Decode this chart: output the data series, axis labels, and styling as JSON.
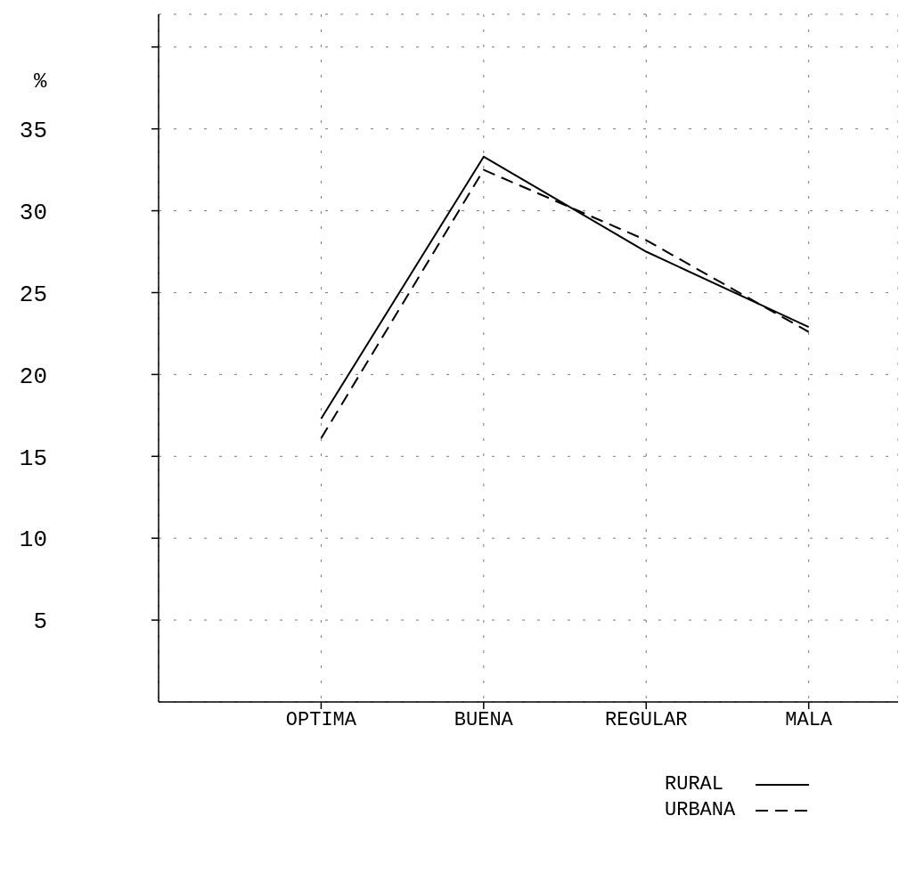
{
  "chart_data": {
    "type": "line",
    "ylabel": "%",
    "categories": [
      "OPTIMA",
      "BUENA",
      "REGULAR",
      "MALA"
    ],
    "series": [
      {
        "name": "RURAL",
        "color": "#000000",
        "values": [
          17.3,
          33.3,
          27.5,
          22.9
        ],
        "line_style": "solid"
      },
      {
        "name": "URBANA",
        "color": "#000000",
        "values": [
          16.1,
          32.5,
          28.2,
          22.6
        ],
        "line_style": "dashed"
      }
    ],
    "ylim": [
      0,
      42
    ],
    "yticks": [
      5,
      10,
      15,
      20,
      25,
      30,
      35,
      {
        "value": 40,
        "label": null
      }
    ],
    "grid": true,
    "legend": "bottom right",
    "marker": "none"
  }
}
